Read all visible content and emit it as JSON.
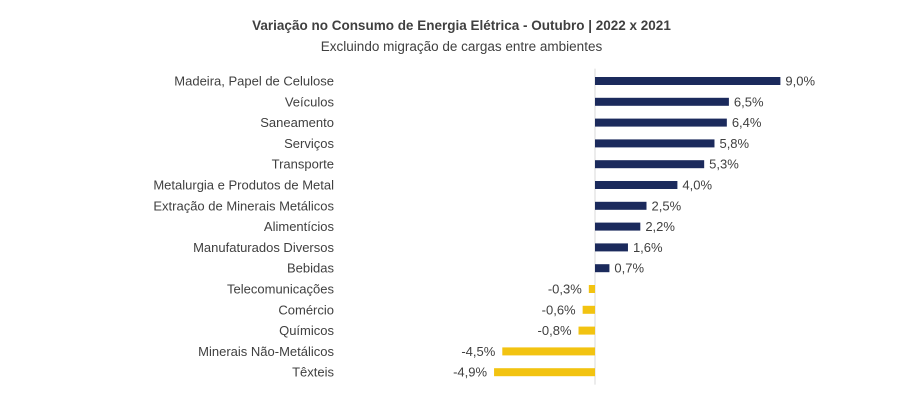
{
  "chart_data": {
    "type": "bar",
    "orientation": "horizontal",
    "title": "Variação no Consumo de Energia Elétrica -  Outubro | 2022 x 2021",
    "subtitle": "Excluindo migração de cargas entre ambientes",
    "categories": [
      "Madeira, Papel de Celulose",
      "Veículos",
      "Saneamento",
      "Serviços",
      "Transporte",
      "Metalurgia e Produtos de Metal",
      "Extração de Minerais Metálicos",
      "Alimentícios",
      "Manufaturados Diversos",
      "Bebidas",
      "Telecomunicações",
      "Comércio",
      "Químicos",
      "Minerais Não-Metálicos",
      "Têxteis"
    ],
    "values": [
      9.0,
      6.5,
      6.4,
      5.8,
      5.3,
      4.0,
      2.5,
      2.2,
      1.6,
      0.7,
      -0.3,
      -0.6,
      -0.8,
      -4.5,
      -4.9
    ],
    "value_labels": [
      "9,0%",
      "6,5%",
      "6,4%",
      "5,8%",
      "5,3%",
      "4,0%",
      "2,5%",
      "2,2%",
      "1,6%",
      "0,7%",
      "-0,3%",
      "-0,6%",
      "-0,8%",
      "-4,5%",
      "-4,9%"
    ],
    "colors": {
      "positive": "#1b2a5c",
      "negative": "#f2c311",
      "axis": "#d9d9d9"
    },
    "grid": false,
    "legend": "none",
    "xlim": [
      -5.4,
      9.6
    ]
  }
}
